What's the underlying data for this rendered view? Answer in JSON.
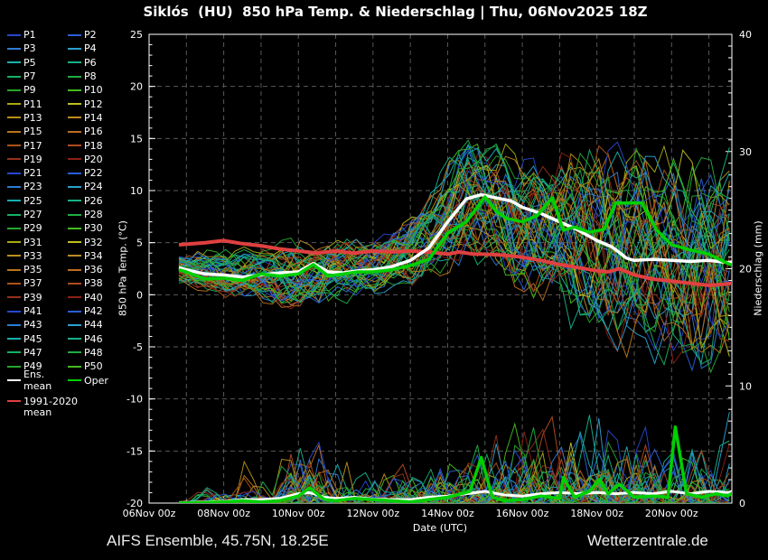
{
  "title": "Siklós  (HU)  850 hPa Temp. & Niederschlag | Thu, 06Nov2025 18Z",
  "footer": {
    "left": "AIFS Ensemble, 45.75N, 18.25E",
    "right": "Wetterzentrale.de"
  },
  "legend": {
    "member_prefix": "P",
    "member_count": 50,
    "special": [
      {
        "label": "Ens. mean",
        "color": "#ffffff"
      },
      {
        "label": "Oper",
        "color": "#00d000"
      }
    ],
    "climate": {
      "label_line1": "1991-2020",
      "label_line2": "mean",
      "color": "#e04040"
    }
  },
  "chart_data": {
    "type": "line",
    "title": "Siklós (HU) 850 hPa Temp. & Niederschlag | Thu, 06Nov2025 18Z",
    "x_axis": {
      "label": "Date (UTC)",
      "tick_labels": [
        "06Nov 00z",
        "08Nov 00z",
        "10Nov 00z",
        "12Nov 00z",
        "14Nov 00z",
        "16Nov 00z",
        "18Nov 00z",
        "20Nov 00z"
      ],
      "tick_days": [
        0,
        2,
        4,
        6,
        8,
        10,
        12,
        14
      ],
      "grid_day_step": 1,
      "range_days": [
        0,
        15.62
      ]
    },
    "y_left": {
      "label": "850 hPa Temp. (°C)",
      "ticks": [
        25,
        20,
        15,
        10,
        5,
        0,
        -5,
        -10,
        -15,
        -20
      ],
      "range": [
        -20,
        25
      ],
      "grid": true
    },
    "y_right": {
      "label": "Niederschlag (mm)",
      "ticks": [
        40,
        30,
        20,
        10,
        0
      ],
      "range": [
        0,
        40
      ],
      "minor_step": 1
    },
    "grid_color": "#5a5a5a",
    "series": [
      {
        "name": "1991-2020 mean",
        "axis": "left",
        "color": "#e04040",
        "width": 4,
        "t": [
          0.8,
          1.5,
          2,
          2.5,
          3,
          3.5,
          4,
          4.5,
          5,
          5.5,
          6,
          6.5,
          7,
          7.5,
          8,
          8.3,
          8.7,
          9,
          9.5,
          10,
          10.5,
          11,
          11.5,
          12,
          12.3,
          12.6,
          13,
          13.5,
          14,
          14.5,
          15,
          15.4,
          15.75
        ],
        "v": [
          4.8,
          5.0,
          5.2,
          4.9,
          4.7,
          4.4,
          4.2,
          4.0,
          4.2,
          4.0,
          4.2,
          4.1,
          4.2,
          4.1,
          3.9,
          4.1,
          3.9,
          3.9,
          3.8,
          3.6,
          3.3,
          2.9,
          2.6,
          2.3,
          2.2,
          2.5,
          1.9,
          1.5,
          1.3,
          1.1,
          0.9,
          1.0,
          1.2
        ]
      },
      {
        "name": "Ens. mean temp",
        "axis": "left",
        "color": "#ffffff",
        "width": 3.5,
        "t": [
          0.8,
          1.0,
          1.5,
          2,
          2.5,
          3,
          3.5,
          4,
          4.4,
          4.8,
          5.2,
          5.6,
          6,
          6.5,
          7,
          7.5,
          8,
          8.5,
          8.9,
          9.3,
          9.7,
          10,
          10.5,
          11,
          11.5,
          12,
          12.4,
          12.8,
          13,
          13.5,
          14,
          14.5,
          15,
          15.5,
          15.75
        ],
        "v": [
          2.6,
          2.4,
          2.0,
          1.9,
          1.7,
          1.9,
          2.1,
          2.2,
          3.0,
          2.2,
          2.1,
          2.3,
          2.4,
          2.7,
          3.3,
          4.5,
          7.0,
          9.2,
          9.6,
          9.3,
          9.0,
          8.4,
          7.8,
          7.0,
          6.2,
          5.2,
          4.6,
          3.5,
          3.3,
          3.4,
          3.3,
          3.2,
          3.3,
          3.1,
          3.2
        ]
      },
      {
        "name": "Oper temp",
        "axis": "left",
        "color": "#00d000",
        "width": 3.5,
        "t": [
          0.8,
          1.0,
          1.5,
          2,
          2.5,
          3,
          3.5,
          4,
          4.4,
          4.8,
          5.2,
          5.6,
          6,
          6.5,
          7,
          7.5,
          8,
          8.5,
          9.0,
          9.3,
          9.6,
          10,
          10.4,
          10.8,
          11.1,
          11.4,
          11.8,
          12.2,
          12.5,
          13.2,
          13.6,
          14,
          14.5,
          15,
          15.5,
          15.75
        ],
        "v": [
          2.4,
          2.2,
          1.5,
          1.6,
          1.4,
          2.0,
          1.8,
          2.0,
          2.9,
          1.8,
          2.0,
          2.2,
          2.2,
          2.4,
          2.8,
          3.4,
          5.9,
          7.0,
          9.4,
          8.0,
          7.3,
          7.0,
          7.6,
          9.3,
          6.2,
          6.5,
          6.0,
          6.3,
          8.8,
          8.8,
          6.2,
          4.8,
          4.3,
          3.9,
          3.0,
          2.7
        ]
      },
      {
        "name": "Ens. mean precip",
        "axis": "right",
        "color": "#ffffff",
        "width": 3,
        "t": [
          0.8,
          1.5,
          2,
          2.5,
          3,
          3.5,
          4,
          4.3,
          4.7,
          5,
          5.5,
          6,
          6.5,
          7,
          7.5,
          8,
          8.5,
          9,
          9.5,
          10,
          10.5,
          11,
          11.5,
          12,
          12.5,
          13,
          13.5,
          14,
          14.5,
          15,
          15.5,
          15.75
        ],
        "v": [
          0.05,
          0.1,
          0.15,
          0.3,
          0.3,
          0.4,
          0.8,
          0.9,
          0.5,
          0.4,
          0.5,
          0.35,
          0.3,
          0.3,
          0.5,
          0.6,
          0.8,
          1.0,
          0.7,
          0.6,
          0.8,
          0.9,
          0.8,
          0.9,
          0.8,
          0.9,
          0.8,
          1.0,
          0.8,
          1.0,
          0.9,
          1.1
        ]
      },
      {
        "name": "Oper precip",
        "axis": "right",
        "color": "#00d000",
        "width": 3.5,
        "t": [
          0.8,
          1.5,
          2,
          2.5,
          3,
          3.5,
          4,
          4.3,
          4.7,
          5,
          5.5,
          6,
          6.5,
          7,
          7.5,
          8,
          8.6,
          8.9,
          9.2,
          9.5,
          10,
          10.5,
          11,
          11.1,
          11.4,
          11.8,
          12.06,
          12.3,
          12.6,
          13,
          13.5,
          13.9,
          14.1,
          14.4,
          14.8,
          15.2,
          15.5,
          15.75
        ],
        "v": [
          0.0,
          0.05,
          0.1,
          0.2,
          0.1,
          0.2,
          0.6,
          1.3,
          0.3,
          0.2,
          0.4,
          0.3,
          0.2,
          0.1,
          0.3,
          0.5,
          1.0,
          3.9,
          0.5,
          0.2,
          0.3,
          0.6,
          0.4,
          2.2,
          0.5,
          1.0,
          2.0,
          0.8,
          1.6,
          0.5,
          0.6,
          0.5,
          6.5,
          0.8,
          0.5,
          0.8,
          0.6,
          1.1
        ]
      }
    ],
    "ensemble": {
      "member_count": 50,
      "seed": 7,
      "member_colors": [
        "#2847cc",
        "#2a5fd6",
        "#2c7cd2",
        "#2aa0cc",
        "#18b0ae",
        "#16b189",
        "#15b164",
        "#1ead42",
        "#28a52b",
        "#44ba1e",
        "#a9a913",
        "#bfbf1f",
        "#ba8f16",
        "#bb8c22",
        "#b9751a",
        "#bc6d24",
        "#ab5316",
        "#b04b20",
        "#96311a",
        "#8c2013"
      ],
      "temp_envelope": {
        "t": [
          0.8,
          1.5,
          2,
          3,
          4,
          5,
          6,
          7,
          7.5,
          8,
          8.5,
          9,
          9.5,
          10,
          11,
          12,
          13,
          14,
          15,
          15.75
        ],
        "lo": [
          0.8,
          0.2,
          -0.3,
          -1.0,
          -1.5,
          -1.0,
          -0.2,
          0.3,
          0.8,
          2.0,
          3.0,
          3.0,
          1.5,
          -0.5,
          -3.0,
          -5.0,
          -6.5,
          -8.0,
          -8.0,
          -7.0
        ],
        "hi": [
          3.8,
          4.2,
          4.3,
          4.5,
          5.5,
          5.2,
          5.5,
          7.5,
          10.0,
          13.5,
          16.0,
          15.0,
          14.5,
          14.0,
          14.0,
          14.5,
          15.0,
          14.5,
          13.5,
          13.0
        ]
      },
      "precip_episodes": [
        {
          "t0": 1.4,
          "t1": 2.6,
          "pmax": 1.8,
          "prob": 0.45
        },
        {
          "t0": 2.45,
          "t1": 3.2,
          "pmax": 5.2,
          "prob": 0.2
        },
        {
          "t0": 3.6,
          "t1": 4.7,
          "pmax": 8.0,
          "prob": 0.75
        },
        {
          "t0": 4.7,
          "t1": 6.1,
          "pmax": 5.5,
          "prob": 0.55
        },
        {
          "t0": 6.1,
          "t1": 7.3,
          "pmax": 4.8,
          "prob": 0.5
        },
        {
          "t0": 7.3,
          "t1": 8.4,
          "pmax": 5.5,
          "prob": 0.55
        },
        {
          "t0": 8.4,
          "t1": 9.7,
          "pmax": 7.0,
          "prob": 0.7
        },
        {
          "t0": 9.7,
          "t1": 11.3,
          "pmax": 10.5,
          "prob": 0.8
        },
        {
          "t0": 11.3,
          "t1": 12.7,
          "pmax": 10.0,
          "prob": 0.8
        },
        {
          "t0": 12.7,
          "t1": 14.1,
          "pmax": 9.0,
          "prob": 0.8
        },
        {
          "t0": 14.1,
          "t1": 15.75,
          "pmax": 9.0,
          "prob": 0.8
        }
      ]
    },
    "legend_position": "left"
  }
}
